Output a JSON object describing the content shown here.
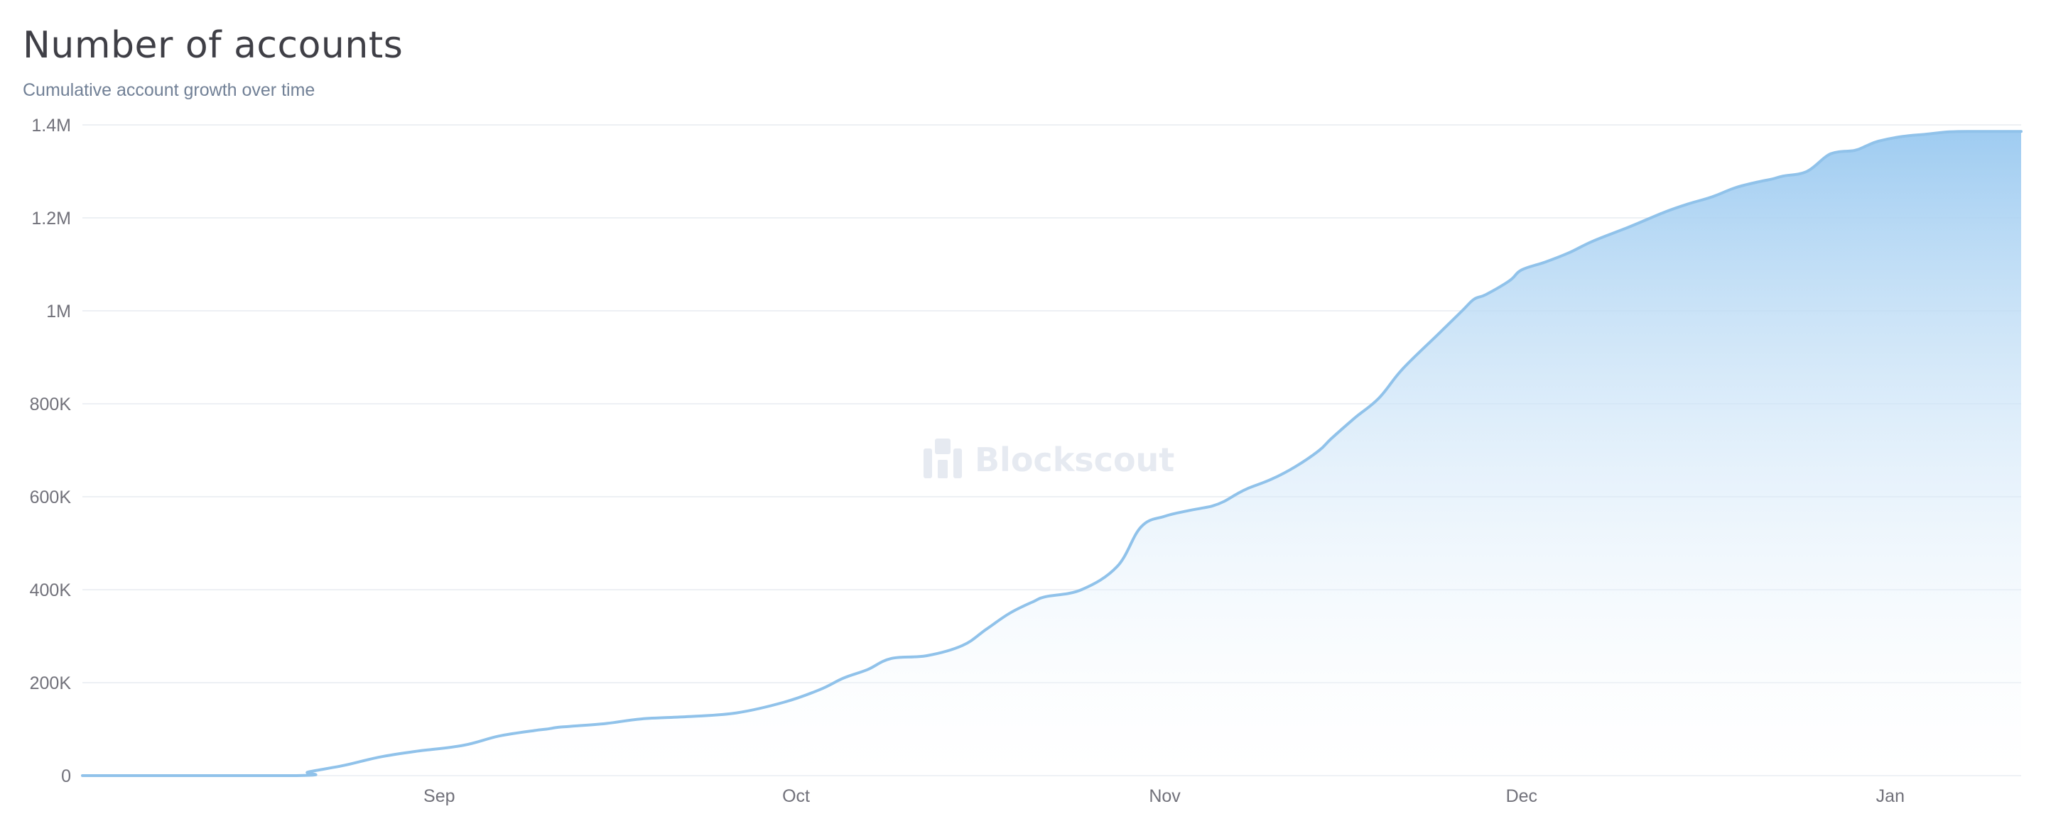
{
  "chart": {
    "title": "Number of accounts",
    "subtitle": "Cumulative account growth over time"
  },
  "watermark": {
    "text": "Blockscout",
    "icon": "blockscout-logo-icon"
  },
  "colors": {
    "line": "#90c2ea",
    "area_top": "#9fccf1",
    "area_bottom": "#ffffff",
    "grid": "#edf0f4",
    "tick": "#71717a",
    "title": "#3f3f46",
    "subtitle": "#718096"
  },
  "chart_data": {
    "type": "area",
    "title": "Number of accounts",
    "subtitle": "Cumulative account growth over time",
    "xlabel": "",
    "ylabel": "",
    "xlim": [
      "2024-08-02",
      "2025-01-12"
    ],
    "ylim": [
      0,
      1400000
    ],
    "grid": true,
    "y_ticks": [
      {
        "value": 0,
        "label": "0"
      },
      {
        "value": 200000,
        "label": "200K"
      },
      {
        "value": 400000,
        "label": "400K"
      },
      {
        "value": 600000,
        "label": "600K"
      },
      {
        "value": 800000,
        "label": "800K"
      },
      {
        "value": 1000000,
        "label": "1M"
      },
      {
        "value": 1200000,
        "label": "1.2M"
      },
      {
        "value": 1400000,
        "label": "1.4M"
      }
    ],
    "x_ticks": [
      {
        "value": "2024-09-01",
        "label": "Sep"
      },
      {
        "value": "2024-10-01",
        "label": "Oct"
      },
      {
        "value": "2024-11-01",
        "label": "Nov"
      },
      {
        "value": "2024-12-01",
        "label": "Dec"
      },
      {
        "value": "2025-01-01",
        "label": "Jan"
      }
    ],
    "series": [
      {
        "x": [
          "2024-08-02",
          "2024-08-20",
          "2024-08-21",
          "2024-08-24",
          "2024-08-27",
          "2024-08-30",
          "2024-09-03",
          "2024-09-06",
          "2024-09-09",
          "2024-09-10",
          "2024-09-11",
          "2024-09-12",
          "2024-09-15",
          "2024-09-18",
          "2024-09-22",
          "2024-09-26",
          "2024-09-30",
          "2024-10-03",
          "2024-10-05",
          "2024-10-07",
          "2024-10-09",
          "2024-10-12",
          "2024-10-15",
          "2024-10-17",
          "2024-10-19",
          "2024-10-21",
          "2024-10-22",
          "2024-10-25",
          "2024-10-28",
          "2024-10-30",
          "2024-11-01",
          "2024-11-03",
          "2024-11-04",
          "2024-11-05",
          "2024-11-06",
          "2024-11-07",
          "2024-11-08",
          "2024-11-10",
          "2024-11-12",
          "2024-11-14",
          "2024-11-15",
          "2024-11-17",
          "2024-11-19",
          "2024-11-21",
          "2024-11-24",
          "2024-11-26",
          "2024-11-27",
          "2024-11-28",
          "2024-11-30",
          "2024-12-01",
          "2024-12-03",
          "2024-12-05",
          "2024-12-07",
          "2024-12-10",
          "2024-12-13",
          "2024-12-15",
          "2024-12-17",
          "2024-12-19",
          "2024-12-21",
          "2024-12-22",
          "2024-12-23",
          "2024-12-25",
          "2024-12-27",
          "2024-12-29",
          "2024-12-30",
          "2024-12-31",
          "2025-01-02",
          "2025-01-04",
          "2025-01-06",
          "2025-01-08",
          "2025-01-12"
        ],
        "values": [
          0,
          0,
          8000,
          22000,
          40000,
          52000,
          65000,
          85000,
          97000,
          100000,
          104000,
          106000,
          112000,
          122000,
          127000,
          135000,
          158000,
          185000,
          210000,
          228000,
          252000,
          258000,
          280000,
          315000,
          350000,
          375000,
          385000,
          400000,
          450000,
          535000,
          558000,
          570000,
          575000,
          580000,
          590000,
          605000,
          618000,
          638000,
          665000,
          700000,
          725000,
          770000,
          812000,
          875000,
          950000,
          1000000,
          1025000,
          1035000,
          1065000,
          1088000,
          1105000,
          1125000,
          1150000,
          1180000,
          1212000,
          1230000,
          1245000,
          1265000,
          1278000,
          1283000,
          1290000,
          1300000,
          1338000,
          1345000,
          1355000,
          1365000,
          1375000,
          1380000,
          1385000,
          1386000,
          1386000
        ]
      }
    ]
  }
}
